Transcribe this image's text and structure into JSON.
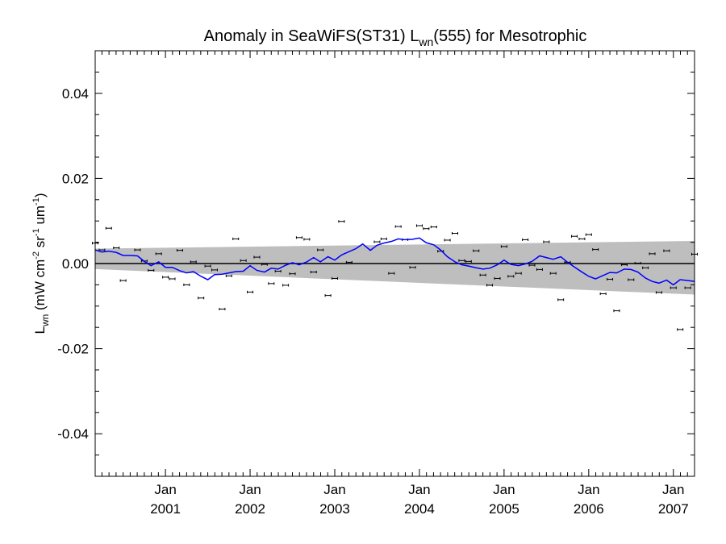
{
  "chart_data": {
    "type": "scatter",
    "title": {
      "main": "Anomaly in SeaWiFS(ST31) L",
      "sub": "wn",
      "tail": "(555) for Mesotrophic"
    },
    "ylabel": {
      "main": "L",
      "sub": "wn",
      "unit_open": " (mW cm",
      "exp1": "-2",
      "unit_mid": " sr",
      "exp2": "-1",
      "unit_mid2": " um",
      "exp3": "-1",
      "unit_close": ")"
    },
    "xlim": [
      2000.17,
      2007.25
    ],
    "ylim": [
      -0.05,
      0.05
    ],
    "grid": false,
    "y_ticks": [
      {
        "value": 0.04,
        "label": "0.04"
      },
      {
        "value": 0.02,
        "label": "0.02"
      },
      {
        "value": 0.0,
        "label": "0.00"
      },
      {
        "value": -0.02,
        "label": "-0.02"
      },
      {
        "value": -0.04,
        "label": "-0.04"
      }
    ],
    "x_ticks": [
      {
        "value": 2001.0,
        "month": "Jan",
        "year": "2001"
      },
      {
        "value": 2002.0,
        "month": "Jan",
        "year": "2002"
      },
      {
        "value": 2003.0,
        "month": "Jan",
        "year": "2003"
      },
      {
        "value": 2004.0,
        "month": "Jan",
        "year": "2004"
      },
      {
        "value": 2005.0,
        "month": "Jan",
        "year": "2005"
      },
      {
        "value": 2006.0,
        "month": "Jan",
        "year": "2006"
      },
      {
        "value": 2007.0,
        "month": "Jan",
        "year": "2007"
      }
    ],
    "band": {
      "x": [
        2000.17,
        2007.25
      ],
      "upper": [
        0.0035,
        0.0053
      ],
      "lower": [
        -0.0013,
        -0.0073
      ],
      "color": "#bebebe"
    },
    "zero_line": 0.0,
    "points": {
      "error": 0.0003,
      "color": "#000000",
      "x": [
        2000.17,
        2000.25,
        2000.33,
        2000.42,
        2000.5,
        2000.67,
        2000.75,
        2000.83,
        2000.92,
        2001.0,
        2001.08,
        2001.17,
        2001.25,
        2001.33,
        2001.42,
        2001.5,
        2001.58,
        2001.67,
        2001.75,
        2001.83,
        2001.92,
        2002.0,
        2002.08,
        2002.17,
        2002.25,
        2002.33,
        2002.42,
        2002.5,
        2002.58,
        2002.67,
        2002.75,
        2002.83,
        2002.92,
        2003.0,
        2003.08,
        2003.17,
        2003.5,
        2003.58,
        2003.67,
        2003.75,
        2003.83,
        2003.92,
        2004.0,
        2004.08,
        2004.17,
        2004.25,
        2004.33,
        2004.42,
        2004.5,
        2004.58,
        2004.67,
        2004.75,
        2004.83,
        2004.92,
        2005.0,
        2005.08,
        2005.17,
        2005.25,
        2005.33,
        2005.42,
        2005.5,
        2005.58,
        2005.67,
        2005.75,
        2005.83,
        2005.92,
        2006.0,
        2006.08,
        2006.17,
        2006.25,
        2006.33,
        2006.42,
        2006.5,
        2006.58,
        2006.67,
        2006.75,
        2006.83,
        2006.92,
        2007.0,
        2007.08,
        2007.17,
        2007.25
      ],
      "y": [
        0.0048,
        0.0032,
        0.0083,
        0.0037,
        -0.004,
        0.0032,
        0.0006,
        -0.0016,
        0.0023,
        -0.0032,
        -0.0036,
        0.0031,
        -0.005,
        0.0004,
        -0.0081,
        -0.0006,
        -0.0015,
        -0.0107,
        -0.0029,
        0.0058,
        0.0007,
        -0.0067,
        0.0015,
        -0.0002,
        -0.0047,
        -0.0018,
        -0.0051,
        -0.0024,
        0.0061,
        0.0057,
        -0.002,
        0.0032,
        -0.0075,
        -0.0035,
        0.0099,
        0.0003,
        0.0051,
        0.0058,
        -0.0023,
        0.0087,
        0.0056,
        -0.0009,
        0.0089,
        0.0082,
        0.0086,
        0.0029,
        0.0055,
        0.0071,
        0.0007,
        0.0005,
        0.003,
        -0.0027,
        -0.0051,
        -0.0035,
        0.004,
        -0.003,
        -0.0023,
        0.0056,
        -0.0004,
        -0.0014,
        0.0051,
        -0.0023,
        -0.0085,
        0.0003,
        0.0064,
        0.0058,
        0.0068,
        0.0033,
        -0.0071,
        -0.0037,
        -0.0111,
        -0.0003,
        -0.0038,
        0.0001,
        -0.001,
        0.0023,
        -0.0068,
        0.003,
        -0.0057,
        -0.0155,
        -0.0057,
        0.0022
      ]
    },
    "series": [
      {
        "color": "#0000ff",
        "x": [
          2000.17,
          2000.25,
          2000.33,
          2000.42,
          2000.5,
          2000.58,
          2000.67,
          2000.75,
          2000.83,
          2000.92,
          2001.0,
          2001.08,
          2001.17,
          2001.25,
          2001.33,
          2001.42,
          2001.5,
          2001.58,
          2001.67,
          2001.75,
          2001.83,
          2001.92,
          2002.0,
          2002.08,
          2002.17,
          2002.25,
          2002.33,
          2002.42,
          2002.5,
          2002.58,
          2002.67,
          2002.75,
          2002.83,
          2002.92,
          2003.0,
          2003.08,
          2003.17,
          2003.25,
          2003.33,
          2003.42,
          2003.5,
          2003.58,
          2003.67,
          2003.75,
          2003.83,
          2003.92,
          2004.0,
          2004.08,
          2004.17,
          2004.25,
          2004.33,
          2004.42,
          2004.5,
          2004.58,
          2004.67,
          2004.75,
          2004.83,
          2004.92,
          2005.0,
          2005.08,
          2005.17,
          2005.25,
          2005.33,
          2005.42,
          2005.5,
          2005.58,
          2005.67,
          2005.75,
          2005.83,
          2005.92,
          2006.0,
          2006.08,
          2006.17,
          2006.25,
          2006.33,
          2006.42,
          2006.5,
          2006.58,
          2006.67,
          2006.75,
          2006.83,
          2006.92,
          2007.0,
          2007.08,
          2007.17,
          2007.25
        ],
        "y": [
          0.0032,
          0.0027,
          0.0029,
          0.0026,
          0.0019,
          0.0019,
          0.0018,
          0.0005,
          -0.0005,
          0.0004,
          -0.0009,
          -0.0009,
          -0.0017,
          -0.0022,
          -0.0019,
          -0.003,
          -0.0038,
          -0.0026,
          -0.0025,
          -0.0022,
          -0.0019,
          -0.0018,
          -0.0005,
          -0.0016,
          -0.002,
          -0.0011,
          -0.0013,
          -0.0004,
          0.0002,
          -0.0003,
          0.0004,
          0.0014,
          0.0004,
          0.0016,
          0.0008,
          0.002,
          0.0028,
          0.0035,
          0.0046,
          0.0031,
          0.0043,
          0.0048,
          0.0052,
          0.0058,
          0.0056,
          0.0057,
          0.006,
          0.0049,
          0.0044,
          0.0032,
          0.0016,
          0.0004,
          -0.0003,
          -0.0006,
          -0.001,
          -0.0013,
          -0.0011,
          -0.0003,
          0.0008,
          -0.0002,
          -0.0005,
          -0.0001,
          0.0005,
          0.0018,
          0.0014,
          0.001,
          0.0016,
          0.0003,
          -0.0008,
          -0.002,
          -0.003,
          -0.0036,
          -0.0028,
          -0.0021,
          -0.0022,
          -0.0013,
          -0.0014,
          -0.002,
          -0.0034,
          -0.0042,
          -0.0046,
          -0.0039,
          -0.005,
          -0.0038,
          -0.004,
          -0.0042
        ]
      }
    ]
  }
}
